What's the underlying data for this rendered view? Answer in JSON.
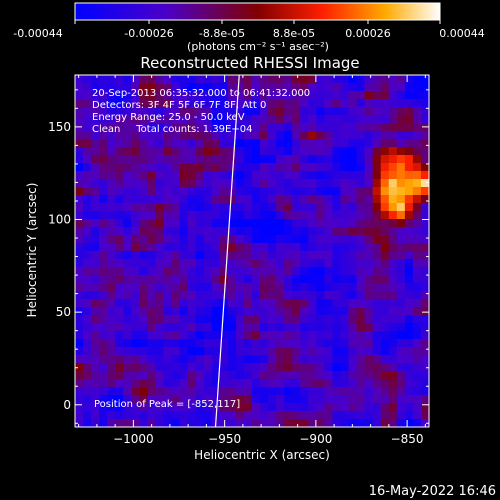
{
  "colorbar": {
    "ticks": [
      "-0.00044",
      "-0.00026",
      "-8.8e-05",
      "8.8e-05",
      "0.00026",
      "0.00044"
    ],
    "unit_label": "(photons cm⁻² s⁻¹ asec⁻²)",
    "range": [
      -0.00044,
      0.00044
    ],
    "stops": [
      "#0000ff",
      "#4b00c8",
      "#800000",
      "#ff2000",
      "#ffaa00",
      "#ffffff"
    ]
  },
  "chart_data": {
    "type": "heatmap",
    "title": "Reconstructed RHESSI Image",
    "xlabel": "Heliocentric X (arcsec)",
    "ylabel": "Heliocentric Y (arcsec)",
    "xlim": [
      -1032,
      -838
    ],
    "ylim": [
      -12,
      178
    ],
    "xticks": [
      -1000,
      -950,
      -900,
      -850
    ],
    "xtick_labels": [
      "−1000",
      "−950",
      "−900",
      "−850"
    ],
    "yticks": [
      0,
      50,
      100,
      150
    ],
    "ytick_labels": [
      "0",
      "50",
      "100",
      "150"
    ],
    "limb_line": [
      [
        -955,
        -12
      ],
      [
        -942,
        178
      ]
    ],
    "peak": [
      -852,
      117
    ],
    "info_lines": [
      "20-Sep-2013 06:35:32.000 to 06:41:32.000",
      "Detectors: 3F 4F 5F 6F 7F 8F, Att 0",
      "Energy Range: 25.0 - 50.0 keV",
      "Clean     Total counts: 1.39E+04"
    ],
    "peak_label": "Position of Peak = [-852,117]"
  },
  "footer": {
    "date": "16-May-2022 16:46"
  }
}
